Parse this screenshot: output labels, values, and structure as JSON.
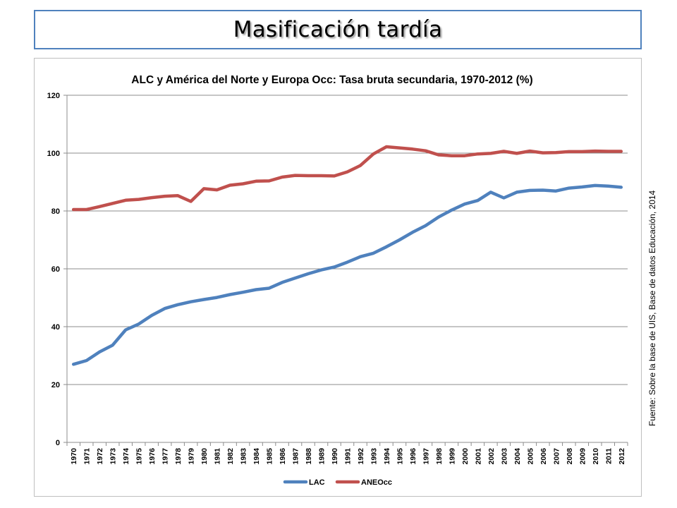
{
  "slide": {
    "title": "Masificación tardía",
    "source_note": "Fuente: Sobre la base de UIS, Base de datos Educación, 2014"
  },
  "chart_data": {
    "type": "line",
    "title": "ALC y América del Norte y Europa Occ: Tasa bruta secundaria, 1970-2012 (%)",
    "xlabel": "",
    "ylabel": "",
    "ylim": [
      0,
      120
    ],
    "yticks": [
      0,
      20,
      40,
      60,
      80,
      100,
      120
    ],
    "grid": true,
    "legend_position": "bottom",
    "x": [
      "1970",
      "1971",
      "1972",
      "1973",
      "1974",
      "1975",
      "1976",
      "1977",
      "1978",
      "1979",
      "1980",
      "1981",
      "1982",
      "1983",
      "1984",
      "1985",
      "1986",
      "1987",
      "1988",
      "1989",
      "1990",
      "1991",
      "1992",
      "1993",
      "1994",
      "1995",
      "1996",
      "1997",
      "1998",
      "1999",
      "2000",
      "2001",
      "2002",
      "2003",
      "2004",
      "2005",
      "2006",
      "2007",
      "2008",
      "2009",
      "2010",
      "2011",
      "2012"
    ],
    "series": [
      {
        "name": "LAC",
        "color": "#4f81bd",
        "values": [
          27.0,
          28.3,
          31.3,
          33.6,
          38.9,
          40.9,
          43.9,
          46.3,
          47.6,
          48.6,
          49.4,
          50.1,
          51.1,
          51.9,
          52.8,
          53.3,
          55.3,
          56.8,
          58.3,
          59.6,
          60.6,
          62.3,
          64.2,
          65.4,
          67.6,
          70.0,
          72.6,
          74.9,
          77.9,
          80.3,
          82.4,
          83.6,
          86.5,
          84.5,
          86.5,
          87.1,
          87.2,
          86.9,
          87.9,
          88.3,
          88.8,
          88.6,
          88.2
        ]
      },
      {
        "name": "ANEOcc",
        "color": "#c0504d",
        "values": [
          80.5,
          80.5,
          81.5,
          82.6,
          83.7,
          84.0,
          84.6,
          85.1,
          85.3,
          83.3,
          87.7,
          87.3,
          88.9,
          89.4,
          90.3,
          90.4,
          91.7,
          92.3,
          92.2,
          92.2,
          92.1,
          93.5,
          95.7,
          99.7,
          102.2,
          101.8,
          101.4,
          100.8,
          99.4,
          99.1,
          99.1,
          99.7,
          99.9,
          100.6,
          99.9,
          100.7,
          100.1,
          100.2,
          100.5,
          100.5,
          100.7,
          100.6,
          100.6
        ]
      }
    ]
  }
}
